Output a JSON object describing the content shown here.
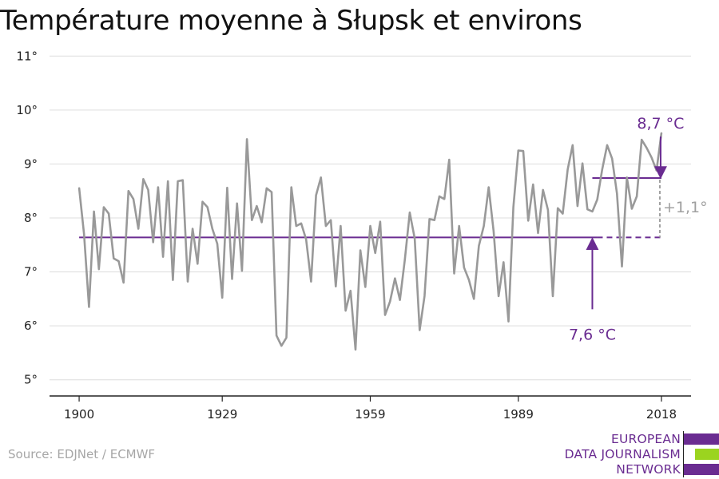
{
  "title": "Température moyenne à Słupsk et environs",
  "source": "Source: EDJNet / ECMWF",
  "logo": {
    "lines": [
      "EUROPEAN",
      "DATA JOURNALISM",
      "NETWORK"
    ],
    "colors": [
      "#6a2c91",
      "#9bd41f",
      "#6a2c91"
    ]
  },
  "colors": {
    "series": "#999999",
    "accent": "#6a2c91",
    "diff": "#a0a0a0",
    "grid": "#dddddd"
  },
  "chart_data": {
    "type": "line",
    "ytick_labels": [
      "5°",
      "6°",
      "7°",
      "8°",
      "9°",
      "10°",
      "11°"
    ],
    "yticks": [
      5,
      6,
      7,
      8,
      9,
      10,
      11
    ],
    "xtick_labels": [
      "1900",
      "1929",
      "1959",
      "1989",
      "2018"
    ],
    "xticks": [
      1900,
      1929,
      1959,
      1989,
      2018
    ],
    "ylim": [
      4.7,
      11.3
    ],
    "xlim": [
      1894,
      2024
    ],
    "grid": true,
    "series": [
      {
        "x_start": 1900,
        "values": [
          8.55,
          7.7,
          6.35,
          8.12,
          7.05,
          8.2,
          8.08,
          7.25,
          7.2,
          6.8,
          8.5,
          8.35,
          7.8,
          8.72,
          8.52,
          7.55,
          8.57,
          7.28,
          8.68,
          6.85,
          8.68,
          8.7,
          6.82,
          7.8,
          7.15,
          8.3,
          8.2,
          7.8,
          7.52,
          6.52,
          8.56,
          6.87,
          8.27,
          7.02,
          9.46,
          7.96,
          8.22,
          7.92,
          8.55,
          8.48,
          5.82,
          5.63,
          5.78,
          8.57,
          7.85,
          7.9,
          7.6,
          6.82,
          8.42,
          8.75,
          7.85,
          7.96,
          6.73,
          7.85,
          6.28,
          6.65,
          5.56,
          7.4,
          6.72,
          7.85,
          7.35,
          7.93,
          6.2,
          6.45,
          6.88,
          6.48,
          7.22,
          8.1,
          7.62,
          5.92,
          6.55,
          7.98,
          7.96,
          8.4,
          8.35,
          9.08,
          6.97,
          7.85,
          7.08,
          6.85,
          6.5,
          7.48,
          7.85,
          8.57,
          7.75,
          6.55,
          7.18,
          6.08,
          8.2,
          9.25,
          9.24,
          7.95,
          8.62,
          7.72,
          8.52,
          8.15,
          6.55,
          8.18,
          8.08,
          8.9,
          9.35,
          8.22,
          9.01,
          8.16,
          8.12,
          8.34,
          8.9,
          9.35,
          9.1,
          8.45,
          7.1,
          8.75,
          8.17,
          8.4,
          9.45,
          9.3,
          9.12,
          8.88,
          9.57
        ]
      }
    ],
    "baseline": {
      "value": 7.64,
      "label": "7,6 °C",
      "x_start": 1900,
      "x_end": 2018,
      "solid_until": 2004
    },
    "recent": {
      "value": 8.74,
      "label": "8,7 °C",
      "x_start": 2004,
      "x_end": 2018
    },
    "difference_label": "+1,1°"
  }
}
